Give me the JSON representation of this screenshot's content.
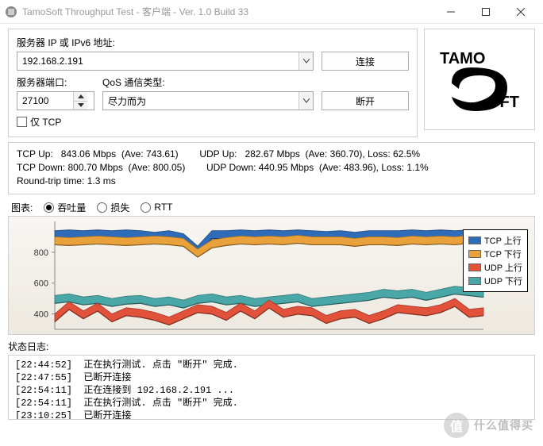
{
  "window": {
    "title": "TamoSoft Throughput Test - 客户端 - Ver. 1.0 Build 33"
  },
  "conn": {
    "server_ip_label": "服务器 IP 或 IPv6 地址:",
    "server_ip_value": "192.168.2.191",
    "port_label": "服务器端口:",
    "port_value": "27100",
    "qos_label": "QoS 通信类型:",
    "qos_value": "尽力而为",
    "btn_connect": "连接",
    "btn_disconnect": "断开",
    "tcp_only_label": "仅 TCP"
  },
  "logo": {
    "text_top": "TAMO",
    "text_bottom": "OFT"
  },
  "stats": {
    "tcp_up_label": "TCP Up:",
    "tcp_up_val": "843.06 Mbps",
    "tcp_up_ave": "(Ave: 743.61)",
    "tcp_dn_label": "TCP Down:",
    "tcp_dn_val": "800.70 Mbps",
    "tcp_dn_ave": "(Ave: 800.05)",
    "udp_up_label": "UDP Up:",
    "udp_up_val": "282.67 Mbps",
    "udp_up_ave": "(Ave: 360.70), Loss: 62.5%",
    "udp_dn_label": "UDP Down:",
    "udp_dn_val": "440.95 Mbps",
    "udp_dn_ave": "(Ave: 483.96), Loss: 1.1%",
    "rtt": "Round-trip time: 1.3 ms"
  },
  "chart": {
    "label": "图表:",
    "radios": {
      "throughput": "吞吐量",
      "loss": "损失",
      "rtt": "RTT"
    },
    "yticks": [
      400,
      600,
      800
    ],
    "ylim": [
      300,
      1000
    ],
    "legend": [
      {
        "label": "TCP 上行",
        "color": "#2e6bb8"
      },
      {
        "label": "TCP 下行",
        "color": "#e9a13b"
      },
      {
        "label": "UDP 上行",
        "color": "#e2513a"
      },
      {
        "label": "UDP 下行",
        "color": "#4aa7a7"
      }
    ],
    "series": {
      "tcp_up": {
        "color": "#2e6bb8",
        "values": [
          940,
          945,
          940,
          945,
          940,
          945,
          940,
          930,
          940,
          920,
          840,
          940,
          940,
          945,
          940,
          945,
          940,
          945,
          940,
          935,
          940,
          930,
          940,
          940,
          940,
          945,
          940,
          945,
          940,
          945,
          940
        ]
      },
      "tcp_down": {
        "color": "#e9a13b",
        "values": [
          900,
          895,
          900,
          905,
          900,
          895,
          900,
          905,
          900,
          890,
          820,
          880,
          895,
          905,
          900,
          905,
          900,
          910,
          900,
          900,
          900,
          890,
          900,
          900,
          895,
          905,
          900,
          905,
          900,
          910,
          910
        ]
      },
      "udp_down": {
        "color": "#4aa7a7",
        "values": [
          520,
          530,
          510,
          520,
          500,
          515,
          520,
          500,
          510,
          490,
          520,
          530,
          510,
          520,
          500,
          510,
          520,
          530,
          500,
          510,
          520,
          530,
          540,
          560,
          550,
          560,
          540,
          560,
          580,
          570,
          560
        ]
      },
      "udp_up": {
        "color": "#e2513a",
        "values": [
          400,
          480,
          420,
          470,
          400,
          440,
          430,
          410,
          380,
          420,
          460,
          450,
          410,
          470,
          420,
          490,
          430,
          450,
          440,
          390,
          420,
          430,
          390,
          420,
          460,
          450,
          440,
          460,
          500,
          430,
          440
        ]
      }
    },
    "band_thickness": 10
  },
  "log": {
    "label": "状态日志:",
    "lines": [
      "[22:44:52]  正在执行测试. 点击 \"断开\" 完成.",
      "[22:47:55]  已断开连接",
      "[22:54:11]  正在连接到 192.168.2.191 ...",
      "[22:54:11]  正在执行测试. 点击 \"断开\" 完成.",
      "[23:10:25]  已断开连接"
    ]
  },
  "watermark": {
    "icon_text": "值",
    "text": "什么值得买"
  }
}
